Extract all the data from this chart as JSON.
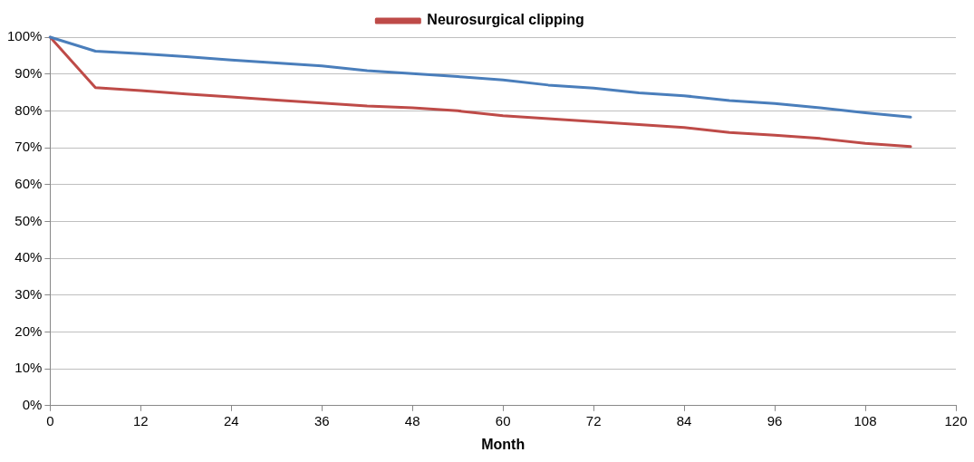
{
  "chart_data": {
    "type": "line",
    "xlabel": "Month",
    "x": [
      0,
      6,
      12,
      18,
      24,
      30,
      36,
      42,
      48,
      54,
      60,
      66,
      72,
      78,
      84,
      90,
      96,
      102,
      108,
      114
    ],
    "series": [
      {
        "color": "#4a7ebb",
        "values": [
          100,
          96.2,
          95.5,
          94.7,
          93.8,
          93.0,
          92.2,
          90.9,
          90.1,
          89.3,
          88.4,
          87.0,
          86.2,
          84.9,
          84.1,
          82.8,
          82.0,
          80.8,
          79.5,
          78.3
        ]
      },
      {
        "name": "Neurosurgical clipping",
        "color": "#be4b48",
        "values": [
          100,
          86.3,
          85.5,
          84.6,
          83.8,
          82.9,
          82.1,
          81.3,
          80.8,
          80.0,
          78.7,
          77.9,
          77.1,
          76.3,
          75.5,
          74.1,
          73.4,
          72.5,
          71.2,
          70.3
        ]
      }
    ],
    "xlim": [
      0,
      120
    ],
    "xticks": [
      0,
      12,
      24,
      36,
      48,
      60,
      72,
      84,
      96,
      108,
      120
    ],
    "ylim": [
      0,
      100
    ],
    "yticks": [
      {
        "value": 0,
        "label": "0%"
      },
      {
        "value": 10,
        "label": "10%"
      },
      {
        "value": 20,
        "label": "20%"
      },
      {
        "value": 30,
        "label": "30%"
      },
      {
        "value": 40,
        "label": "40%"
      },
      {
        "value": 50,
        "label": "50%"
      },
      {
        "value": 60,
        "label": "60%"
      },
      {
        "value": 70,
        "label": "70%"
      },
      {
        "value": 80,
        "label": "80%"
      },
      {
        "value": 90,
        "label": "90%"
      },
      {
        "value": 100,
        "label": "100%"
      }
    ],
    "grid": "y",
    "legend": "top",
    "marker": "none",
    "line_style": "solid"
  }
}
